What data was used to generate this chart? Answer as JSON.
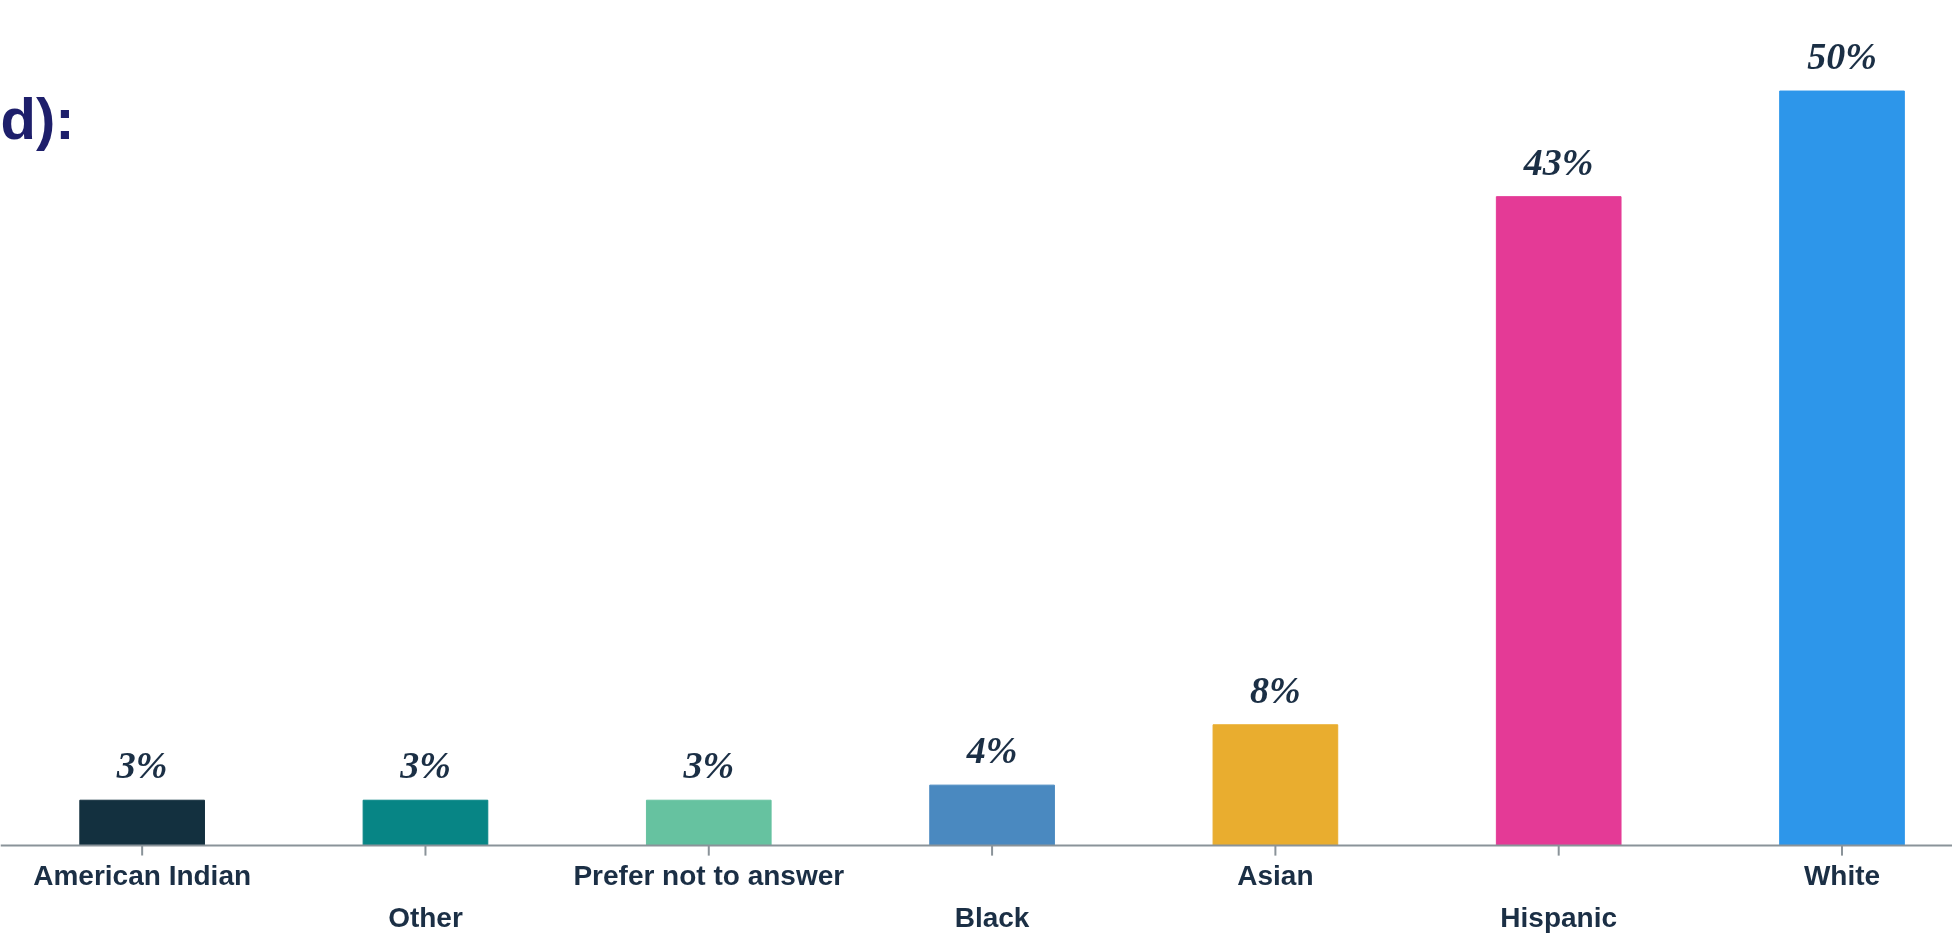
{
  "chart_data": {
    "type": "bar",
    "title": "d):",
    "categories": [
      "American Indian",
      "Other",
      "Prefer not to answer",
      "Black",
      "Asian",
      "Hispanic",
      "White"
    ],
    "values": [
      3,
      3,
      3,
      4,
      8,
      43,
      50
    ],
    "value_labels": [
      "3%",
      "3%",
      "3%",
      "4%",
      "8%",
      "43%",
      "50%"
    ],
    "colors": [
      "#13303f",
      "#078585",
      "#66c2a0",
      "#4a89c0",
      "#e9ad2f",
      "#e43a96",
      "#2d96ea"
    ],
    "ylim": [
      0,
      56
    ],
    "grid": false
  }
}
